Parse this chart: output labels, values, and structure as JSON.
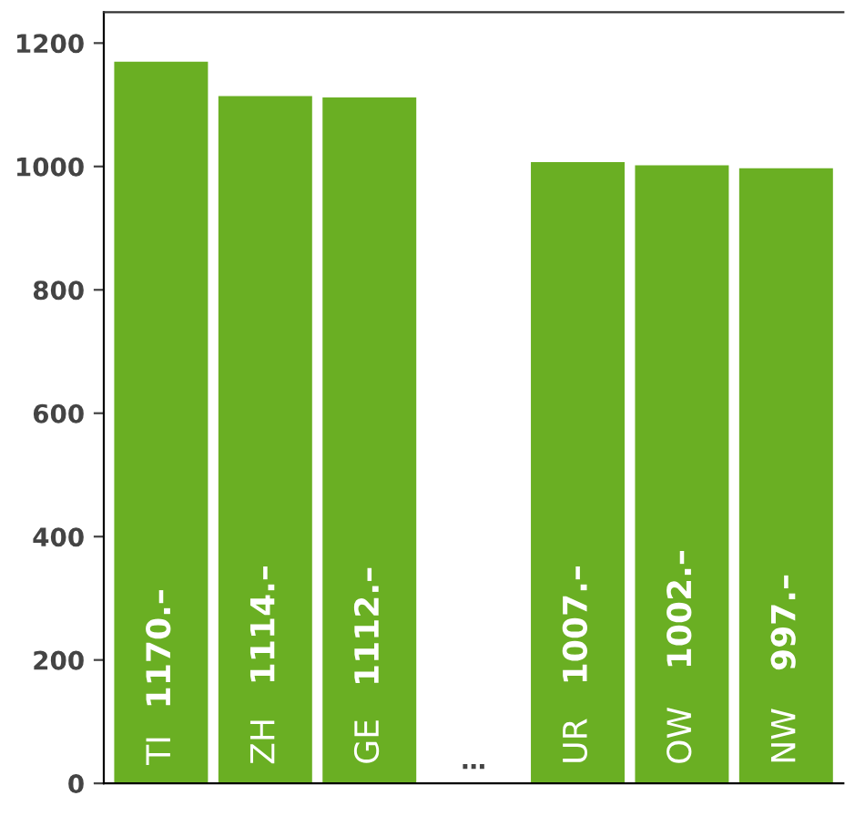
{
  "chart_data": {
    "type": "bar",
    "categories": [
      "TI",
      "ZH",
      "GE",
      "…",
      "UR",
      "OW",
      "NW"
    ],
    "values": [
      1170,
      1114,
      1112,
      null,
      1007,
      1002,
      997
    ],
    "value_labels": [
      "1170.–",
      "1114.–",
      "1112.–",
      null,
      "1007.–",
      "1002.–",
      "997.–"
    ],
    "color": "#6aaf23",
    "ylim": [
      0,
      1250
    ],
    "yticks": [
      0,
      200,
      400,
      600,
      800,
      1000,
      1200
    ],
    "grid": false,
    "legend": false
  }
}
